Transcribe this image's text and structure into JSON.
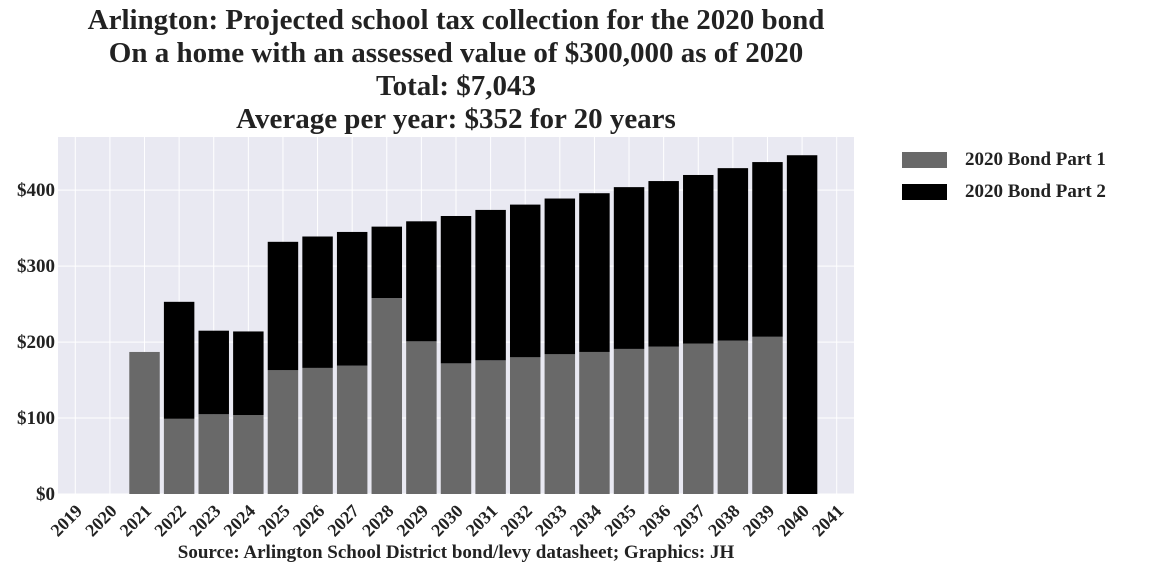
{
  "chart_data": {
    "type": "bar",
    "stacked": true,
    "title_lines": [
      "Arlington: Projected school tax collection for the 2020 bond",
      "On a home with an assessed value of $300,000 as of 2020",
      "Total: $7,043",
      "Average per year: $352 for 20 years"
    ],
    "source": "Source: Arlington School District bond/levy datasheet; Graphics: JH",
    "categories": [
      "2019",
      "2020",
      "2021",
      "2022",
      "2023",
      "2024",
      "2025",
      "2026",
      "2027",
      "2028",
      "2029",
      "2030",
      "2031",
      "2032",
      "2033",
      "2034",
      "2035",
      "2036",
      "2037",
      "2038",
      "2039",
      "2040",
      "2041"
    ],
    "series": [
      {
        "name": "2020 Bond Part 1",
        "color": "#696969",
        "values": [
          0,
          0,
          187,
          99,
          105,
          104,
          163,
          166,
          169,
          258,
          201,
          172,
          176,
          180,
          184,
          187,
          191,
          194,
          198,
          202,
          207,
          0,
          0
        ]
      },
      {
        "name": "2020 Bond Part 2",
        "color": "#000000",
        "values": [
          0,
          0,
          0,
          154,
          110,
          110,
          169,
          173,
          176,
          94,
          158,
          194,
          198,
          201,
          205,
          209,
          213,
          218,
          222,
          227,
          230,
          446,
          0
        ]
      }
    ],
    "ylim": [
      0,
      470
    ],
    "yticks": [
      0,
      100,
      200,
      300,
      400
    ],
    "ytick_labels": [
      "$0",
      "$100",
      "$200",
      "$300",
      "$400"
    ],
    "grid": true,
    "background": "#e9e9f2",
    "legend_position": "right"
  }
}
